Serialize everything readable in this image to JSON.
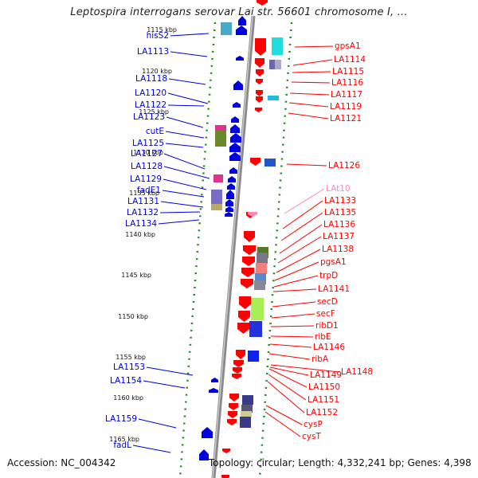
{
  "title": "Leptospira interrogans serovar Lai str. 56601 chromosome I, ...",
  "footer": {
    "accession": "Accession: NC_004342",
    "meta": "Topology: circular; Length: 4,332,241 bp; Genes: 4,398"
  },
  "colors": {
    "minus_strand": "#0000dd",
    "plus_strand": "#ff0000",
    "rna": "#ff88bb",
    "backbone": "#888888",
    "ruler": "#228822"
  },
  "ruler_labels": [
    "1115 kbp",
    "1120 kbp",
    "1125 kbp",
    "1130 kbp",
    "1135 kbp",
    "1140 kbp",
    "1145 kbp",
    "1150 kbp",
    "1155 kbp",
    "1160 kbp",
    "1165 kbp"
  ],
  "left_genes": [
    "hisS2",
    "LA1113",
    "LA1118",
    "LA1120",
    "LA1122",
    "LA1123",
    "cutE",
    "LA1125",
    "LA1127",
    "LA1128",
    "LA1129",
    "fadE1",
    "LA1131",
    "LA1132",
    "LA1134",
    "LA1153",
    "LA1154",
    "LA1159",
    "fadL"
  ],
  "right_genes": [
    "gpsA1",
    "LA1114",
    "LA1115",
    "LA1116",
    "LA1117",
    "LA1119",
    "LA1121",
    "LA1126",
    "LAt10",
    "LA1133",
    "LA1135",
    "LA1136",
    "LA1137",
    "LA1138",
    "pgsA1",
    "trpD",
    "LA1141",
    "secD",
    "secF",
    "ribD1",
    "ribE",
    "LA1146",
    "ribA",
    "LA1148",
    "LA1149",
    "LA1150",
    "LA1151",
    "LA1152",
    "cysP",
    "cysT"
  ]
}
